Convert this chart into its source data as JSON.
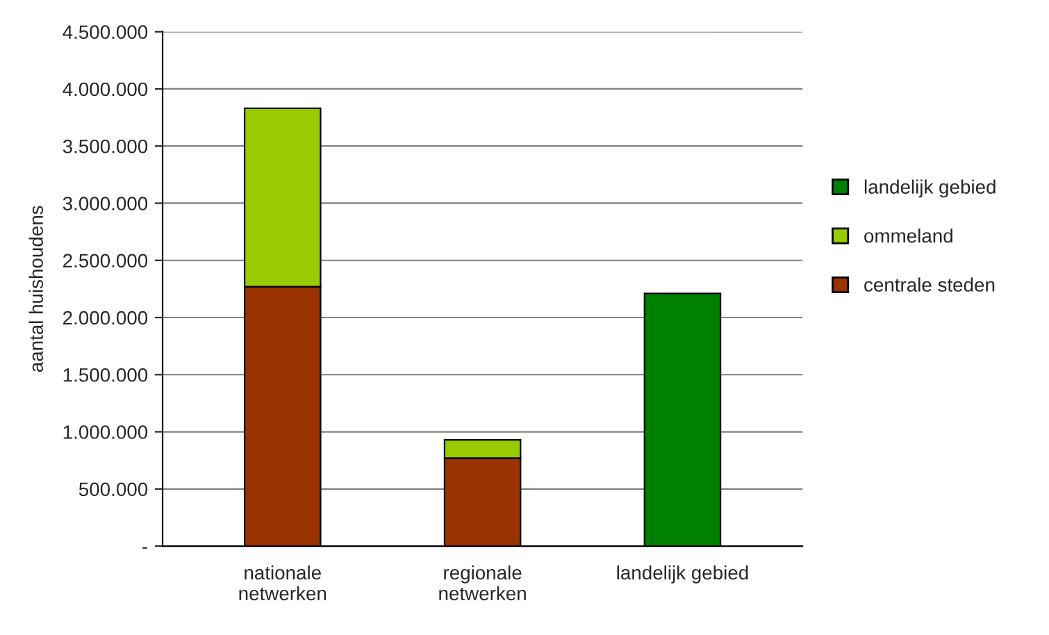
{
  "chart_data": {
    "type": "bar",
    "stacked": true,
    "ylabel": "aantal huishoudens",
    "categories": [
      "nationale\nnetwerken",
      "regionale\nnetwerken",
      "landelijk gebied"
    ],
    "series": [
      {
        "name": "centrale steden",
        "color": "#993300",
        "values": [
          2270000,
          770000,
          null
        ]
      },
      {
        "name": "ommeland",
        "color": "#99cc00",
        "values": [
          1560000,
          160000,
          null
        ]
      },
      {
        "name": "landelijk gebied",
        "color": "#008000",
        "values": [
          null,
          null,
          2210000
        ]
      }
    ],
    "ylim": [
      0,
      4500000
    ],
    "yticks": [
      {
        "value": 0,
        "label": "-"
      },
      {
        "value": 500000,
        "label": "500.000"
      },
      {
        "value": 1000000,
        "label": "1.000.000"
      },
      {
        "value": 1500000,
        "label": "1.500.000"
      },
      {
        "value": 2000000,
        "label": "2.000.000"
      },
      {
        "value": 2500000,
        "label": "2.500.000"
      },
      {
        "value": 3000000,
        "label": "3.000.000"
      },
      {
        "value": 3500000,
        "label": "3.500.000"
      },
      {
        "value": 4000000,
        "label": "4.000.000"
      },
      {
        "value": 4500000,
        "label": "4.500.000"
      }
    ],
    "grid": "y",
    "legend": "right"
  }
}
